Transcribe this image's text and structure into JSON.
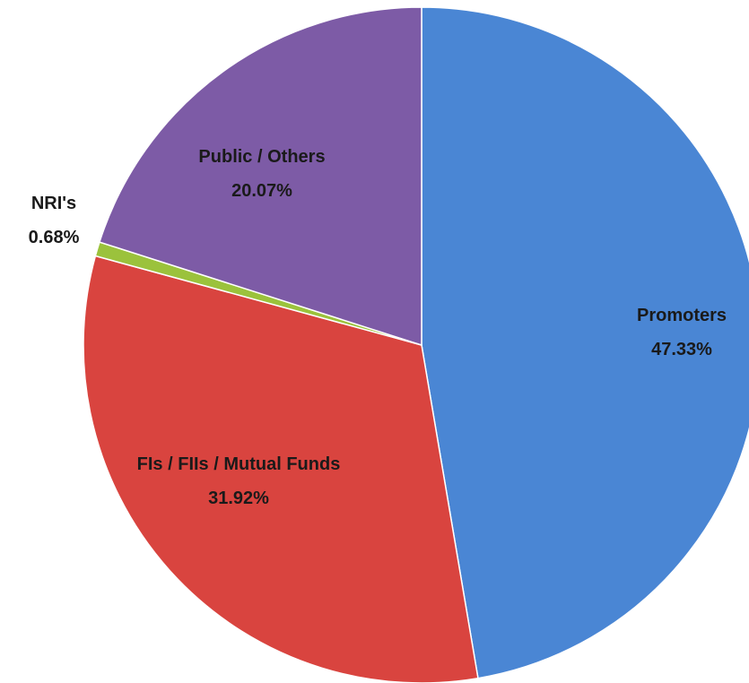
{
  "chart_data": {
    "type": "pie",
    "categories": [
      "Promoters",
      "FIs / FIIs / Mutual Funds",
      "NRI's",
      "Public / Others"
    ],
    "values": [
      47.33,
      31.92,
      0.68,
      20.07
    ],
    "value_labels": [
      "47.33%",
      "31.92%",
      "0.68%",
      "20.07%"
    ],
    "colors": [
      "#4a86d4",
      "#d9443f",
      "#9bc23c",
      "#7d5ba6"
    ]
  }
}
